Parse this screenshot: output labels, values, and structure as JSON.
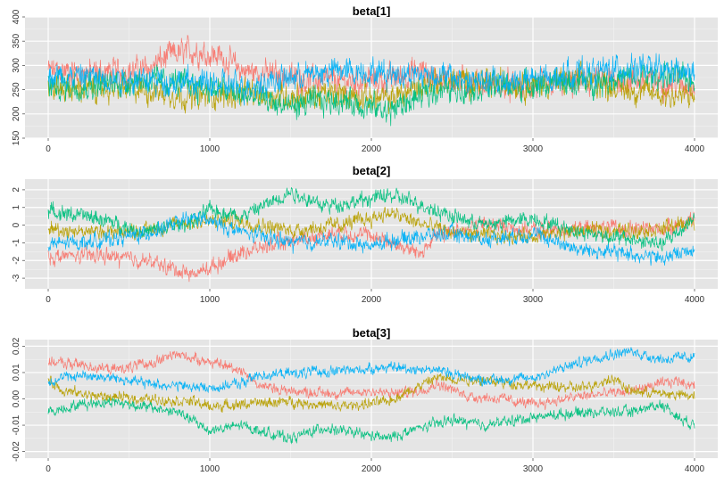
{
  "chart_data": [
    {
      "type": "line",
      "title": "beta[1]",
      "xlim": [
        0,
        4000
      ],
      "ylim": [
        150,
        400
      ],
      "x_ticks": [
        "0",
        "1000",
        "2000",
        "3000",
        "4000"
      ],
      "y_ticks": [
        "150",
        "200",
        "250",
        "300",
        "350",
        "400"
      ],
      "grid": true,
      "noise": 18,
      "series": [
        {
          "color": "#F8766D",
          "values": [
            [
              0,
              290
            ],
            [
              300,
              285
            ],
            [
              600,
              290
            ],
            [
              750,
              320
            ],
            [
              900,
              330
            ],
            [
              1050,
              320
            ],
            [
              1200,
              290
            ],
            [
              1500,
              275
            ],
            [
              1800,
              265
            ],
            [
              2100,
              270
            ],
            [
              2300,
              290
            ],
            [
              2400,
              275
            ],
            [
              2700,
              260
            ],
            [
              3000,
              255
            ],
            [
              3300,
              265
            ],
            [
              3600,
              270
            ],
            [
              3800,
              265
            ],
            [
              4000,
              260
            ]
          ]
        },
        {
          "color": "#B79F00",
          "values": [
            [
              0,
              250
            ],
            [
              300,
              255
            ],
            [
              600,
              250
            ],
            [
              900,
              235
            ],
            [
              1200,
              240
            ],
            [
              1500,
              235
            ],
            [
              1800,
              240
            ],
            [
              2100,
              230
            ],
            [
              2400,
              270
            ],
            [
              2700,
              265
            ],
            [
              3000,
              260
            ],
            [
              3300,
              270
            ],
            [
              3600,
              250
            ],
            [
              3800,
              240
            ],
            [
              4000,
              235
            ]
          ]
        },
        {
          "color": "#00BF7D",
          "values": [
            [
              0,
              255
            ],
            [
              300,
              260
            ],
            [
              600,
              270
            ],
            [
              900,
              260
            ],
            [
              1200,
              240
            ],
            [
              1500,
              215
            ],
            [
              1800,
              230
            ],
            [
              2100,
              205
            ],
            [
              2400,
              250
            ],
            [
              2700,
              255
            ],
            [
              3000,
              260
            ],
            [
              3300,
              265
            ],
            [
              3600,
              275
            ],
            [
              3800,
              280
            ],
            [
              4000,
              270
            ]
          ]
        },
        {
          "color": "#00B0F6",
          "values": [
            [
              0,
              280
            ],
            [
              300,
              275
            ],
            [
              600,
              270
            ],
            [
              900,
              265
            ],
            [
              1200,
              255
            ],
            [
              1500,
              275
            ],
            [
              1800,
              290
            ],
            [
              2100,
              285
            ],
            [
              2400,
              280
            ],
            [
              2700,
              265
            ],
            [
              3000,
              270
            ],
            [
              3300,
              285
            ],
            [
              3600,
              295
            ],
            [
              3800,
              290
            ],
            [
              4000,
              280
            ]
          ]
        }
      ]
    },
    {
      "type": "line",
      "title": "beta[2]",
      "xlim": [
        0,
        4000
      ],
      "ylim": [
        -3.6,
        2.6
      ],
      "x_ticks": [
        "0",
        "1000",
        "2000",
        "3000",
        "4000"
      ],
      "y_ticks": [
        "-3",
        "-2",
        "-1",
        "0",
        "1",
        "2"
      ],
      "grid": true,
      "noise": 0.28,
      "series": [
        {
          "color": "#F8766D",
          "values": [
            [
              0,
              -1.8
            ],
            [
              300,
              -1.7
            ],
            [
              600,
              -2.0
            ],
            [
              900,
              -2.8
            ],
            [
              1000,
              -2.4
            ],
            [
              1200,
              -1.5
            ],
            [
              1500,
              -0.9
            ],
            [
              1800,
              -0.4
            ],
            [
              2000,
              -0.6
            ],
            [
              2100,
              -0.9
            ],
            [
              2300,
              -1.6
            ],
            [
              2400,
              -0.6
            ],
            [
              2700,
              0.1
            ],
            [
              3000,
              -0.3
            ],
            [
              3300,
              -0.2
            ],
            [
              3600,
              -0.2
            ],
            [
              3800,
              -0.2
            ],
            [
              4000,
              0.3
            ]
          ]
        },
        {
          "color": "#B79F00",
          "values": [
            [
              0,
              -0.2
            ],
            [
              300,
              -0.4
            ],
            [
              600,
              -0.3
            ],
            [
              900,
              0.2
            ],
            [
              1200,
              0.2
            ],
            [
              1500,
              -0.3
            ],
            [
              1800,
              0.0
            ],
            [
              2000,
              0.4
            ],
            [
              2100,
              0.7
            ],
            [
              2300,
              0.1
            ],
            [
              2500,
              -0.4
            ],
            [
              2700,
              -0.6
            ],
            [
              3000,
              -0.6
            ],
            [
              3300,
              -0.3
            ],
            [
              3600,
              -0.3
            ],
            [
              3800,
              -0.2
            ],
            [
              4000,
              0.2
            ]
          ]
        },
        {
          "color": "#00BF7D",
          "values": [
            [
              0,
              0.8
            ],
            [
              300,
              0.4
            ],
            [
              600,
              -0.4
            ],
            [
              900,
              0.2
            ],
            [
              1000,
              0.9
            ],
            [
              1200,
              0.5
            ],
            [
              1400,
              1.4
            ],
            [
              1500,
              1.9
            ],
            [
              1700,
              1.1
            ],
            [
              1900,
              1.3
            ],
            [
              2100,
              1.7
            ],
            [
              2300,
              1.2
            ],
            [
              2500,
              0.5
            ],
            [
              2700,
              0.0
            ],
            [
              3000,
              0.4
            ],
            [
              3300,
              -0.4
            ],
            [
              3600,
              -0.8
            ],
            [
              3800,
              -1.1
            ],
            [
              4000,
              0.4
            ]
          ]
        },
        {
          "color": "#00B0F6",
          "values": [
            [
              0,
              -1.1
            ],
            [
              300,
              -0.9
            ],
            [
              600,
              -0.5
            ],
            [
              900,
              0.4
            ],
            [
              1000,
              0.2
            ],
            [
              1200,
              -0.4
            ],
            [
              1500,
              -1.0
            ],
            [
              1800,
              -0.9
            ],
            [
              2000,
              -1.2
            ],
            [
              2100,
              -0.9
            ],
            [
              2300,
              -0.6
            ],
            [
              2500,
              -0.5
            ],
            [
              2700,
              -0.8
            ],
            [
              3000,
              -0.5
            ],
            [
              3300,
              -1.4
            ],
            [
              3600,
              -1.6
            ],
            [
              3800,
              -1.9
            ],
            [
              4000,
              -1.3
            ]
          ]
        }
      ]
    },
    {
      "type": "line",
      "title": "beta[3]",
      "xlim": [
        0,
        4000
      ],
      "ylim": [
        -0.0225,
        0.0225
      ],
      "x_ticks": [
        "0",
        "1000",
        "2000",
        "3000",
        "4000"
      ],
      "y_ticks": [
        "-0.02",
        "-0.01",
        "0.00",
        "0.01",
        "0.02"
      ],
      "grid": true,
      "noise": 0.0013,
      "series": [
        {
          "color": "#F8766D",
          "values": [
            [
              0,
              0.014
            ],
            [
              200,
              0.013
            ],
            [
              400,
              0.011
            ],
            [
              600,
              0.013
            ],
            [
              800,
              0.017
            ],
            [
              1000,
              0.014
            ],
            [
              1200,
              0.011
            ],
            [
              1300,
              0.005
            ],
            [
              1500,
              0.003
            ],
            [
              1800,
              0.002
            ],
            [
              2000,
              0.003
            ],
            [
              2100,
              0.002
            ],
            [
              2300,
              0.003
            ],
            [
              2400,
              0.006
            ],
            [
              2600,
              0.001
            ],
            [
              2800,
              0.0
            ],
            [
              3000,
              -0.002
            ],
            [
              3300,
              0.001
            ],
            [
              3600,
              0.003
            ],
            [
              3900,
              0.007
            ],
            [
              4000,
              0.005
            ]
          ]
        },
        {
          "color": "#B79F00",
          "values": [
            [
              0,
              0.007
            ],
            [
              100,
              0.003
            ],
            [
              300,
              0.001
            ],
            [
              600,
              0.0
            ],
            [
              900,
              -0.001
            ],
            [
              1000,
              -0.003
            ],
            [
              1200,
              -0.002
            ],
            [
              1500,
              -0.001
            ],
            [
              1800,
              -0.003
            ],
            [
              2100,
              -0.001
            ],
            [
              2400,
              0.008
            ],
            [
              2700,
              0.007
            ],
            [
              3000,
              0.005
            ],
            [
              3300,
              0.004
            ],
            [
              3500,
              0.008
            ],
            [
              3600,
              0.003
            ],
            [
              3800,
              0.002
            ],
            [
              4000,
              0.001
            ]
          ]
        },
        {
          "color": "#00BF7D",
          "values": [
            [
              0,
              -0.005
            ],
            [
              200,
              -0.002
            ],
            [
              400,
              -0.001
            ],
            [
              600,
              -0.003
            ],
            [
              800,
              -0.005
            ],
            [
              1000,
              -0.012
            ],
            [
              1200,
              -0.01
            ],
            [
              1300,
              -0.012
            ],
            [
              1500,
              -0.015
            ],
            [
              1700,
              -0.011
            ],
            [
              1900,
              -0.013
            ],
            [
              2100,
              -0.015
            ],
            [
              2300,
              -0.011
            ],
            [
              2500,
              -0.008
            ],
            [
              2700,
              -0.01
            ],
            [
              3000,
              -0.007
            ],
            [
              3300,
              -0.005
            ],
            [
              3600,
              -0.005
            ],
            [
              3800,
              -0.002
            ],
            [
              3900,
              -0.007
            ],
            [
              4000,
              -0.01
            ]
          ]
        },
        {
          "color": "#00B0F6",
          "values": [
            [
              0,
              0.007
            ],
            [
              200,
              0.009
            ],
            [
              400,
              0.008
            ],
            [
              600,
              0.006
            ],
            [
              800,
              0.005
            ],
            [
              1000,
              0.004
            ],
            [
              1200,
              0.006
            ],
            [
              1300,
              0.009
            ],
            [
              1600,
              0.01
            ],
            [
              1900,
              0.011
            ],
            [
              2100,
              0.012
            ],
            [
              2400,
              0.011
            ],
            [
              2700,
              0.007
            ],
            [
              3000,
              0.008
            ],
            [
              3200,
              0.012
            ],
            [
              3400,
              0.016
            ],
            [
              3600,
              0.018
            ],
            [
              3800,
              0.015
            ],
            [
              4000,
              0.016
            ]
          ]
        }
      ]
    }
  ]
}
